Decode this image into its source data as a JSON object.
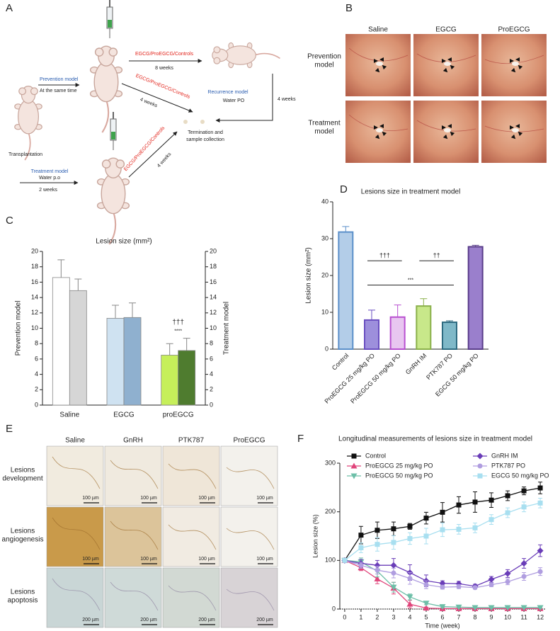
{
  "panel_labels": [
    "A",
    "B",
    "C",
    "D",
    "E",
    "F"
  ],
  "panel_a": {
    "prevention_title": "Prevention model",
    "prevention_note": "At the same time",
    "transplantation": "Transplantation",
    "arm_label_top": "EGCG/ProEGCG/Controls",
    "arm_duration_top": "8 weeks",
    "arm_label_diag1": "EGCG/ProEGCG/Controls",
    "arm_duration_diag1": "4 weeks",
    "recurrence_title": "Recurrence model",
    "recurrence_note": "Water PO",
    "recurrence_duration": "4 weeks",
    "termination": [
      "Termination and",
      "sample collection"
    ],
    "treatment_title": "Treatment model",
    "treatment_note": "Water p.o",
    "treatment_duration": "2 weeks",
    "arm_label_diag2": "EGCG/ProEGCG/Controls",
    "arm_duration_diag2": "4 weeks"
  },
  "panel_b": {
    "columns": [
      "Saline",
      "EGCG",
      "ProEGCG"
    ],
    "rows": [
      [
        "Prevention",
        "model"
      ],
      [
        "Treatment",
        "model"
      ]
    ]
  },
  "panel_e": {
    "columns": [
      "Saline",
      "GnRH",
      "PTK787",
      "ProEGCG"
    ],
    "rows": [
      [
        "Lesions",
        "development"
      ],
      [
        "Lesions",
        "angiogenesis"
      ],
      [
        "Lesions",
        "apoptosis"
      ]
    ],
    "scale_labels": [
      "100 µm",
      "100 µm",
      "200 µm"
    ]
  },
  "chart_data": [
    {
      "type": "bar",
      "title": "Lesion size (mm²)",
      "ylabel": "Prevention model",
      "y2label": "Treatment model",
      "categories": [
        "Saline",
        "EGCG",
        "proEGCG"
      ],
      "series": [
        {
          "values": [
            16.6,
            11.3,
            6.5
          ],
          "errors": [
            2.3,
            1.7,
            1.5
          ],
          "colors": [
            "#ffffff",
            "#cfe2f1",
            "#c6ef5a"
          ]
        },
        {
          "axis": "y2",
          "values": [
            14.9,
            11.4,
            7.1
          ],
          "errors": [
            1.5,
            1.9,
            1.6
          ],
          "colors": [
            "#d6d6d6",
            "#8fb0cf",
            "#4f7c2f"
          ]
        }
      ],
      "ylim": [
        0,
        20
      ],
      "yticks": [
        0,
        2,
        4,
        6,
        8,
        10,
        12,
        14,
        16,
        18,
        20
      ],
      "y2lim": [
        0,
        20
      ],
      "y2ticks": [
        0,
        2,
        4,
        6,
        8,
        10,
        12,
        14,
        16,
        18,
        20
      ],
      "annotations": [
        "†††",
        "****"
      ]
    },
    {
      "type": "bar",
      "title": "Lesions size in treatment model",
      "ylabel": "Lesion size (mm²)",
      "categories": [
        "Control",
        "ProEGCG 25 mg/kg PO",
        "ProEGCG 50 mg/kg PO",
        "GnRH IM",
        "PTK787 PO",
        "EGCG 50 mg/kg PO"
      ],
      "values": [
        31.8,
        7.9,
        8.7,
        11.7,
        7.3,
        27.8
      ],
      "errors": [
        1.5,
        2.7,
        3.3,
        2.0,
        0.4,
        0.4
      ],
      "colors": [
        "#b3cde8",
        "#9d8fdc",
        "#e8c6f0",
        "#c8e88a",
        "#7fb8c8",
        "#9a7fcc"
      ],
      "edge_colors": [
        "#5b8fc9",
        "#6a4fc0",
        "#b84fd0",
        "#8ab04a",
        "#2d6a80",
        "#5a3d8a"
      ],
      "ylim": [
        0,
        40
      ],
      "yticks": [
        0,
        10,
        20,
        30,
        40
      ],
      "annotations": [
        "†††",
        "††",
        "***"
      ]
    },
    {
      "type": "line",
      "title": "Longitudinal measurements of lesions size in treatment model",
      "xlabel": "Time (week)",
      "ylabel": "Lesion size (%)",
      "x": [
        0,
        1,
        2,
        3,
        4,
        5,
        6,
        7,
        8,
        9,
        10,
        11,
        12
      ],
      "series": [
        {
          "name": "Control",
          "color": "#111111",
          "marker": "square",
          "values": [
            100,
            152,
            162,
            165,
            170,
            187,
            199,
            214,
            220,
            224,
            233,
            243,
            249
          ],
          "errors": [
            0,
            18,
            17,
            14,
            6,
            12,
            20,
            17,
            21,
            15,
            10,
            8,
            12
          ]
        },
        {
          "name": "ProEGCG 25 mg/kg PO",
          "color": "#e0457b",
          "marker": "triangle",
          "values": [
            100,
            85,
            62,
            43,
            10,
            2,
            1,
            1,
            1,
            1,
            1,
            1,
            1
          ],
          "errors": [
            0,
            6,
            10,
            12,
            8,
            2,
            1,
            1,
            1,
            1,
            1,
            1,
            1
          ]
        },
        {
          "name": "ProEGCG 50 mg/kg PO",
          "color": "#6dbfa8",
          "marker": "triangle-down",
          "values": [
            100,
            97,
            78,
            45,
            25,
            12,
            5,
            4,
            3,
            3,
            3,
            3,
            3
          ],
          "errors": [
            0,
            8,
            12,
            10,
            6,
            3,
            2,
            1,
            1,
            1,
            1,
            1,
            1
          ]
        },
        {
          "name": "GnRH IM",
          "color": "#6a3db8",
          "marker": "diamond",
          "values": [
            100,
            94,
            90,
            90,
            75,
            58,
            53,
            52,
            47,
            61,
            73,
            94,
            120
          ],
          "errors": [
            0,
            8,
            10,
            14,
            16,
            12,
            5,
            5,
            4,
            6,
            8,
            10,
            12
          ]
        },
        {
          "name": "PTK787 PO",
          "color": "#b09ee0",
          "marker": "circle",
          "values": [
            100,
            90,
            80,
            74,
            63,
            50,
            45,
            46,
            44,
            50,
            56,
            67,
            77
          ],
          "errors": [
            0,
            6,
            8,
            10,
            12,
            8,
            4,
            4,
            3,
            4,
            6,
            8,
            8
          ]
        },
        {
          "name": "EGCG 50 mg/kg PO",
          "color": "#a8dff0",
          "marker": "square",
          "values": [
            100,
            126,
            133,
            137,
            145,
            150,
            163,
            164,
            167,
            184,
            198,
            210,
            218
          ],
          "errors": [
            0,
            10,
            14,
            14,
            12,
            16,
            14,
            10,
            10,
            10,
            10,
            10,
            10
          ]
        }
      ],
      "xlim": [
        -0.3,
        12.3
      ],
      "xticks": [
        0,
        1,
        2,
        3,
        4,
        5,
        6,
        7,
        8,
        9,
        10,
        11,
        12
      ],
      "ylim": [
        0,
        300
      ],
      "yticks": [
        0,
        100,
        200,
        300
      ]
    }
  ]
}
